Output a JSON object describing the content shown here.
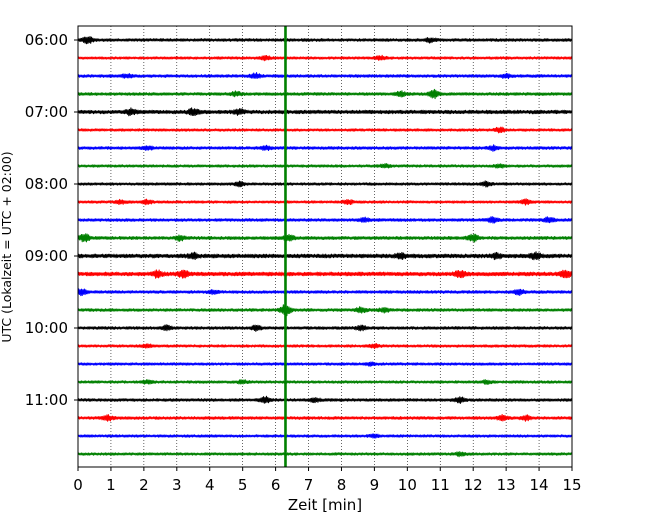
{
  "chart_data": {
    "type": "line",
    "title": "",
    "xlabel": "Zeit  [min]",
    "ylabel": "UTC (Lokalzeit = UTC + 02:00)",
    "xlim": [
      0,
      15
    ],
    "x_ticks": [
      "0",
      "1",
      "2",
      "3",
      "4",
      "5",
      "6",
      "7",
      "8",
      "9",
      "10",
      "11",
      "12",
      "13",
      "14",
      "15"
    ],
    "y_tick_labels": [
      "06:00",
      "07:00",
      "08:00",
      "09:00",
      "10:00",
      "11:00"
    ],
    "grid": {
      "vertical": true,
      "style": "dotted"
    },
    "trace_interval_min": 15,
    "color_cycle": [
      "#000000",
      "#ff0000",
      "#0000ff",
      "#008000"
    ],
    "traces": [
      {
        "start": "06:00",
        "color": "#000000",
        "amplitude": 1.0,
        "bursts": [
          [
            0.3,
            3.0
          ],
          [
            10.7,
            2.0
          ]
        ]
      },
      {
        "start": "06:15",
        "color": "#ff0000",
        "amplitude": 0.9,
        "bursts": [
          [
            5.7,
            1.8
          ],
          [
            9.2,
            1.6
          ]
        ]
      },
      {
        "start": "06:30",
        "color": "#0000ff",
        "amplitude": 1.0,
        "bursts": [
          [
            1.5,
            1.6
          ],
          [
            5.4,
            2.2
          ],
          [
            13.0,
            1.8
          ]
        ]
      },
      {
        "start": "06:45",
        "color": "#008000",
        "amplitude": 1.0,
        "bursts": [
          [
            4.8,
            1.8
          ],
          [
            9.8,
            2.0
          ],
          [
            10.8,
            3.6
          ]
        ]
      },
      {
        "start": "07:00",
        "color": "#000000",
        "amplitude": 1.3,
        "bursts": [
          [
            1.6,
            2.4
          ],
          [
            3.5,
            2.8
          ],
          [
            4.9,
            2.0
          ]
        ]
      },
      {
        "start": "07:15",
        "color": "#ff0000",
        "amplitude": 0.9,
        "bursts": [
          [
            12.8,
            2.2
          ]
        ]
      },
      {
        "start": "07:30",
        "color": "#0000ff",
        "amplitude": 1.0,
        "bursts": [
          [
            2.1,
            1.8
          ],
          [
            5.7,
            1.7
          ],
          [
            12.6,
            2.0
          ]
        ]
      },
      {
        "start": "07:45",
        "color": "#008000",
        "amplitude": 0.9,
        "bursts": [
          [
            9.3,
            1.6
          ],
          [
            12.8,
            1.4
          ]
        ]
      },
      {
        "start": "08:00",
        "color": "#000000",
        "amplitude": 0.9,
        "bursts": [
          [
            4.9,
            1.7
          ],
          [
            12.4,
            2.0
          ]
        ]
      },
      {
        "start": "08:15",
        "color": "#ff0000",
        "amplitude": 0.9,
        "bursts": [
          [
            1.3,
            1.6
          ],
          [
            2.1,
            1.8
          ],
          [
            8.2,
            1.8
          ],
          [
            13.6,
            2.0
          ]
        ]
      },
      {
        "start": "08:30",
        "color": "#0000ff",
        "amplitude": 1.0,
        "bursts": [
          [
            8.7,
            1.6
          ],
          [
            12.6,
            2.2
          ],
          [
            14.3,
            2.4
          ]
        ]
      },
      {
        "start": "08:45",
        "color": "#008000",
        "amplitude": 1.1,
        "bursts": [
          [
            0.2,
            3.2
          ],
          [
            3.1,
            2.0
          ],
          [
            6.4,
            2.4
          ],
          [
            12.0,
            3.0
          ]
        ]
      },
      {
        "start": "09:00",
        "color": "#000000",
        "amplitude": 1.4,
        "bursts": [
          [
            3.5,
            2.2
          ],
          [
            9.8,
            2.4
          ],
          [
            12.7,
            2.0
          ],
          [
            13.9,
            2.8
          ]
        ]
      },
      {
        "start": "09:15",
        "color": "#ff0000",
        "amplitude": 1.4,
        "bursts": [
          [
            2.4,
            2.6
          ],
          [
            3.2,
            2.8
          ],
          [
            11.6,
            2.6
          ],
          [
            14.8,
            3.0
          ]
        ]
      },
      {
        "start": "09:30",
        "color": "#0000ff",
        "amplitude": 1.0,
        "bursts": [
          [
            0.1,
            2.6
          ],
          [
            4.1,
            1.6
          ],
          [
            13.4,
            2.4
          ]
        ]
      },
      {
        "start": "09:45",
        "color": "#008000",
        "amplitude": 1.0,
        "bursts": [
          [
            6.3,
            4.8
          ],
          [
            8.6,
            2.2
          ],
          [
            9.3,
            1.8
          ]
        ]
      },
      {
        "start": "10:00",
        "color": "#000000",
        "amplitude": 1.0,
        "bursts": [
          [
            2.7,
            2.0
          ],
          [
            5.4,
            2.0
          ],
          [
            8.6,
            2.0
          ]
        ]
      },
      {
        "start": "10:15",
        "color": "#ff0000",
        "amplitude": 0.9,
        "bursts": [
          [
            2.1,
            1.3
          ],
          [
            9.0,
            1.4
          ]
        ]
      },
      {
        "start": "10:30",
        "color": "#0000ff",
        "amplitude": 0.9,
        "bursts": [
          [
            8.9,
            1.4
          ]
        ]
      },
      {
        "start": "10:45",
        "color": "#008000",
        "amplitude": 0.9,
        "bursts": [
          [
            2.1,
            1.4
          ],
          [
            5.0,
            1.4
          ],
          [
            12.4,
            1.4
          ]
        ]
      },
      {
        "start": "11:00",
        "color": "#000000",
        "amplitude": 1.0,
        "bursts": [
          [
            5.7,
            2.6
          ],
          [
            7.2,
            1.6
          ],
          [
            11.6,
            2.4
          ]
        ]
      },
      {
        "start": "11:15",
        "color": "#ff0000",
        "amplitude": 1.0,
        "bursts": [
          [
            0.9,
            2.4
          ],
          [
            12.9,
            2.2
          ],
          [
            13.6,
            2.0
          ]
        ]
      },
      {
        "start": "11:30",
        "color": "#0000ff",
        "amplitude": 0.9,
        "bursts": [
          [
            9.0,
            1.4
          ]
        ]
      },
      {
        "start": "11:45",
        "color": "#008000",
        "amplitude": 0.9,
        "bursts": [
          [
            11.6,
            1.6
          ]
        ]
      }
    ],
    "marker_line": {
      "x": 6.3,
      "color": "#008000"
    }
  }
}
